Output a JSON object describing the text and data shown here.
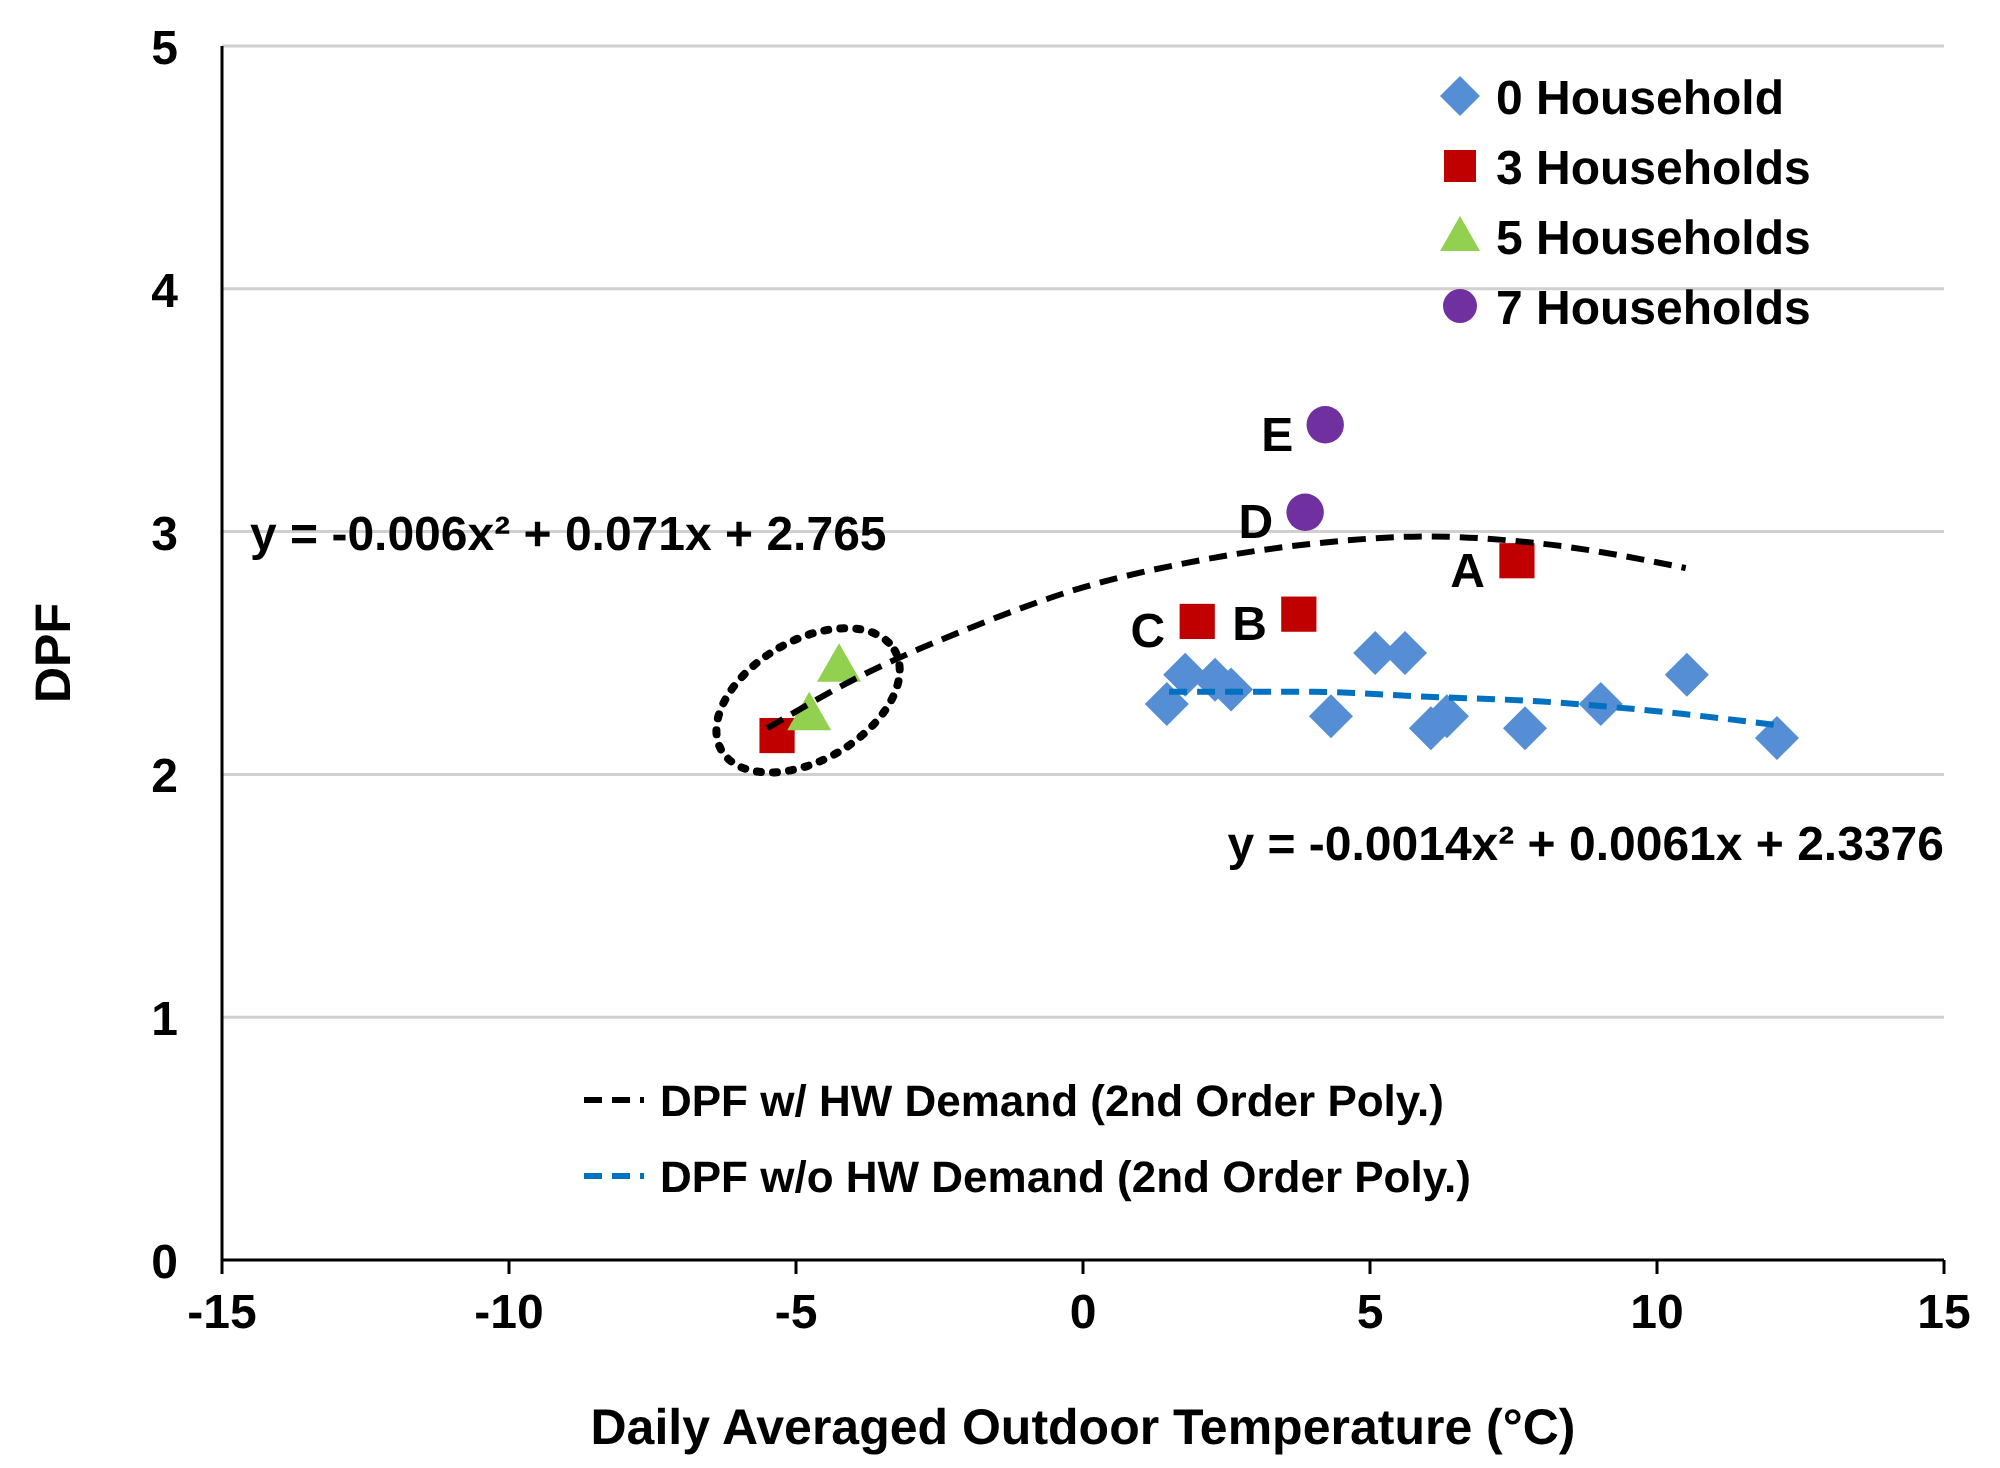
{
  "chart_data": {
    "type": "scatter",
    "xlabel": "Daily Averaged Outdoor Temperature (°C)",
    "ylabel": "DPF",
    "xlim": [
      -15,
      15
    ],
    "xticks": [
      -15,
      -10,
      -5,
      0,
      5,
      10,
      15
    ],
    "ylim": [
      0,
      5
    ],
    "yticks": [
      0,
      1,
      2,
      3,
      4,
      5
    ],
    "grid": "y",
    "legend": "top right",
    "series": [
      {
        "name": "0 Household",
        "color": "#558ed5",
        "marker": "diamond",
        "x": [
          1.46,
          1.78,
          2.3,
          2.58,
          4.32,
          5.09,
          5.61,
          6.06,
          6.34,
          7.7,
          9.02,
          10.52,
          12.09
        ],
        "values": [
          2.29,
          2.41,
          2.39,
          2.35,
          2.24,
          2.5,
          2.5,
          2.19,
          2.24,
          2.19,
          2.29,
          2.41,
          2.15
        ]
      },
      {
        "name": "3 Households",
        "color": "#c00000",
        "marker": "square",
        "x": [
          -5.33,
          1.99,
          3.76,
          7.56
        ],
        "values": [
          2.16,
          2.63,
          2.66,
          2.88
        ]
      },
      {
        "name": "5 Households",
        "color": "#92d050",
        "marker": "triangle",
        "x": [
          -4.77,
          -4.25
        ],
        "values": [
          2.25,
          2.45
        ]
      },
      {
        "name": "7 Households",
        "color": "#7030a0",
        "marker": "circle",
        "x": [
          3.87,
          4.22
        ],
        "values": [
          3.08,
          3.44
        ]
      },
      {
        "name": "DPF w/ HW Demand (2nd Order Poly.)",
        "type": "line",
        "line_style": "dashed",
        "color": "#000000",
        "x": [
          -5.5,
          -4,
          -2,
          0,
          2,
          4,
          6,
          8,
          10.5
        ],
        "values": [
          2.19,
          2.39,
          2.6,
          2.77,
          2.88,
          2.95,
          2.98,
          2.95,
          2.85
        ]
      },
      {
        "name": "DPF w/o HW Demand (2nd Order Poly.)",
        "type": "line",
        "line_style": "dashed",
        "color": "#0070c0",
        "x": [
          1.5,
          4,
          6,
          8,
          10,
          12.2
        ],
        "values": [
          2.34,
          2.34,
          2.32,
          2.3,
          2.26,
          2.2
        ]
      }
    ],
    "annotations": [
      {
        "text": "A",
        "x": 7.56,
        "y": 2.88
      },
      {
        "text": "B",
        "x": 3.76,
        "y": 2.66
      },
      {
        "text": "C",
        "x": 1.99,
        "y": 2.63
      },
      {
        "text": "D",
        "x": 3.87,
        "y": 3.08
      },
      {
        "text": "E",
        "x": 4.22,
        "y": 3.44
      },
      "y = -0.006x² + 0.071x + 2.765",
      "y = -0.0014x² + 0.0061x + 2.3376"
    ]
  }
}
